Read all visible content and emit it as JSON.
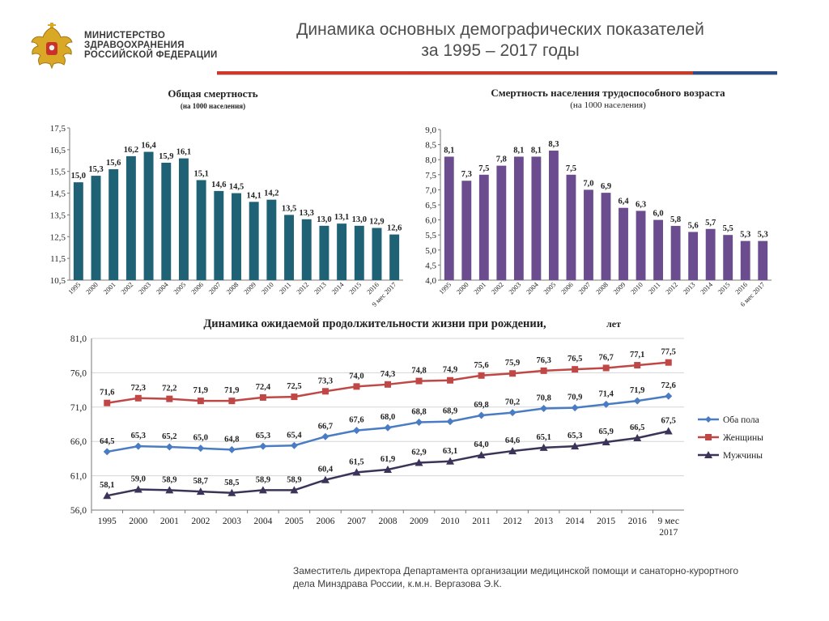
{
  "header": {
    "ministry_lines": [
      "МИНИСТЕРСТВО",
      "ЗДРАВООХРАНЕНИЯ",
      "РОССИЙСКОЙ ФЕДЕРАЦИИ"
    ],
    "title_line1": "Динамика основных демографических показателей",
    "title_line2": "за 1995 – 2017 годы"
  },
  "colors": {
    "teal": "#1f6276",
    "purple": "#6a4c8f",
    "blue": "#4a7cc4",
    "red": "#bf4846",
    "dark": "#3b3358"
  },
  "chart_data": [
    {
      "type": "bar",
      "title": "Общая смертность",
      "subtitle": "(на 1000 населения)",
      "categories": [
        "1995",
        "2000",
        "2001",
        "2002",
        "2003",
        "2004",
        "2005",
        "2006",
        "2007",
        "2008",
        "2009",
        "2010",
        "2011",
        "2012",
        "2013",
        "2014",
        "2015",
        "2016",
        "9 мес 2017"
      ],
      "values": [
        15.0,
        15.3,
        15.6,
        16.2,
        16.4,
        15.9,
        16.1,
        15.1,
        14.6,
        14.5,
        14.1,
        14.2,
        13.5,
        13.3,
        13.0,
        13.1,
        13.0,
        12.9,
        12.6
      ],
      "value_labels": [
        "15,0",
        "15,3",
        "15,6",
        "16,2",
        "16,4",
        "15,9",
        "16,1",
        "15,1",
        "14,6",
        "14,5",
        "14,1",
        "14,2",
        "13,5",
        "13,3",
        "13,0",
        "13,1",
        "13,0",
        "12,9",
        "12,6"
      ],
      "yticks": [
        "10,5",
        "11,5",
        "12,5",
        "13,5",
        "14,5",
        "15,5",
        "16,5",
        "17,5"
      ],
      "ylim": [
        10.5,
        17.5
      ]
    },
    {
      "type": "bar",
      "title": "Смертность населения трудоспособного возраста",
      "subtitle": "(на 1000 населения)",
      "categories": [
        "1995",
        "2000",
        "2001",
        "2002",
        "2003",
        "2004",
        "2005",
        "2006",
        "2007",
        "2008",
        "2009",
        "2010",
        "2011",
        "2012",
        "2013",
        "2014",
        "2015",
        "2016",
        "6 мес 2017"
      ],
      "values": [
        8.1,
        7.3,
        7.5,
        7.8,
        8.1,
        8.1,
        8.3,
        7.5,
        7.0,
        6.9,
        6.4,
        6.3,
        6.0,
        5.8,
        5.6,
        5.7,
        5.5,
        5.3,
        5.3
      ],
      "value_labels": [
        "8,1",
        "7,3",
        "7,5",
        "7,8",
        "8,1",
        "8,1",
        "8,3",
        "7,5",
        "7,0",
        "6,9",
        "6,4",
        "6,3",
        "6,0",
        "5,8",
        "5,6",
        "5,7",
        "5,5",
        "5,3",
        "5,3"
      ],
      "yticks": [
        "4,0",
        "4,5",
        "5,0",
        "5,5",
        "6,0",
        "6,5",
        "7,0",
        "7,5",
        "8,0",
        "8,5",
        "9,0"
      ],
      "ylim": [
        4.0,
        9.0
      ]
    },
    {
      "type": "line",
      "title": "Динамика ожидаемой продолжительности жизни при рождении,",
      "title_unit": "лет",
      "categories": [
        "1995",
        "2000",
        "2001",
        "2002",
        "2003",
        "2004",
        "2005",
        "2006",
        "2007",
        "2008",
        "2009",
        "2010",
        "2011",
        "2012",
        "2013",
        "2014",
        "2015",
        "2016",
        "9 мес"
      ],
      "last_category_line2": "2017",
      "yticks": [
        "56,0",
        "61,0",
        "66,0",
        "71,0",
        "76,0",
        "81,0"
      ],
      "ylim": [
        56.0,
        81.0
      ],
      "series": [
        {
          "name": "Оба пола",
          "marker": "diamond",
          "values": [
            64.5,
            65.3,
            65.2,
            65.0,
            64.8,
            65.3,
            65.4,
            66.7,
            67.6,
            68.0,
            68.8,
            68.9,
            69.8,
            70.2,
            70.8,
            70.9,
            71.4,
            71.9,
            72.6
          ],
          "labels": [
            "64,5",
            "65,3",
            "65,2",
            "65,0",
            "64,8",
            "65,3",
            "65,4",
            "66,7",
            "67,6",
            "68,0",
            "68,8",
            "68,9",
            "69,8",
            "70,2",
            "70,8",
            "70,9",
            "71,4",
            "71,9",
            "72,6"
          ]
        },
        {
          "name": "Женщины",
          "marker": "square",
          "values": [
            71.6,
            72.3,
            72.2,
            71.9,
            71.9,
            72.4,
            72.5,
            73.3,
            74.0,
            74.3,
            74.8,
            74.9,
            75.6,
            75.9,
            76.3,
            76.5,
            76.7,
            77.1,
            77.5
          ],
          "labels": [
            "71,6",
            "72,3",
            "72,2",
            "71,9",
            "71,9",
            "72,4",
            "72,5",
            "73,3",
            "74,0",
            "74,3",
            "74,8",
            "74,9",
            "75,6",
            "75,9",
            "76,3",
            "76,5",
            "76,7",
            "77,1",
            "77,5"
          ]
        },
        {
          "name": "Мужчины",
          "marker": "triangle",
          "values": [
            58.1,
            59.0,
            58.9,
            58.7,
            58.5,
            58.9,
            58.9,
            60.4,
            61.5,
            61.9,
            62.9,
            63.1,
            64.0,
            64.6,
            65.1,
            65.3,
            65.9,
            66.5,
            67.5
          ],
          "labels": [
            "58,1",
            "59,0",
            "58,9",
            "58,7",
            "58,5",
            "58,9",
            "58,9",
            "60,4",
            "61,5",
            "61,9",
            "62,9",
            "63,1",
            "64,0",
            "64,6",
            "65,1",
            "65,3",
            "65,9",
            "66,5",
            "67,5"
          ]
        }
      ]
    }
  ],
  "footer": {
    "line1": "Заместитель директора Департамента организации медицинской помощи и санаторно-курортного",
    "line2": "дела Минздрава России, к.м.н. Вергазова Э.К."
  }
}
